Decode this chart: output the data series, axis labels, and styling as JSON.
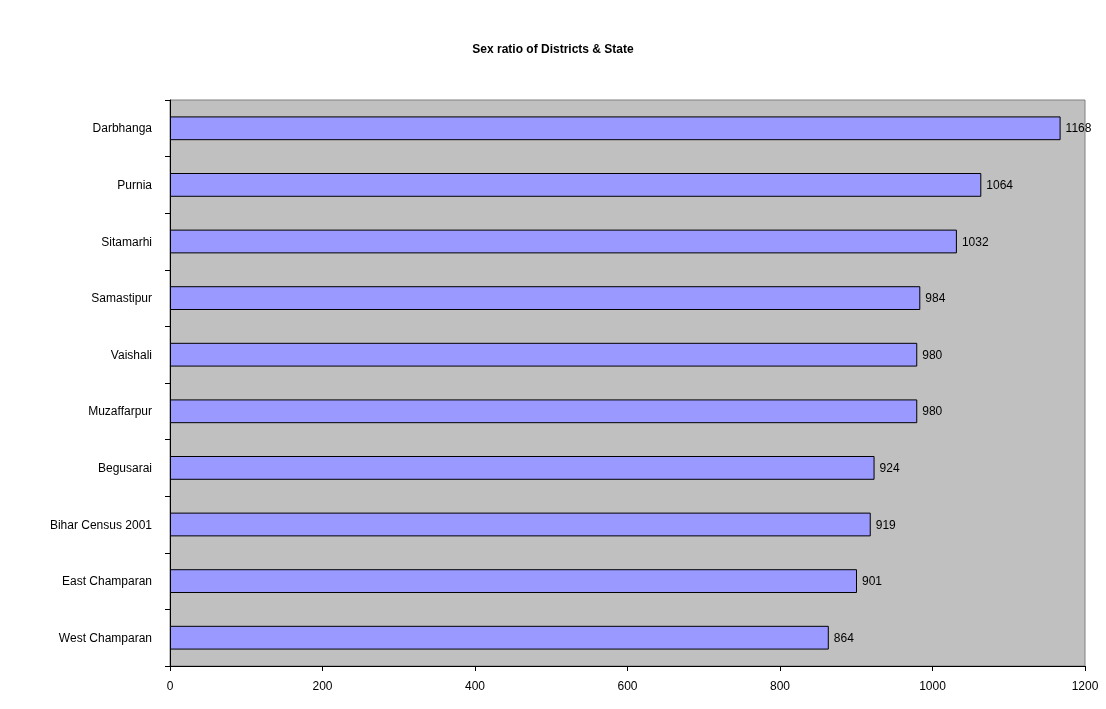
{
  "chart_data": {
    "type": "bar",
    "title": "Sex ratio of Districts & State",
    "orientation": "horizontal",
    "categories": [
      "Darbhanga",
      "Purnia",
      "Sitamarhi",
      "Samastipur",
      "Vaishali",
      "Muzaffarpur",
      "Begusarai",
      "Bihar Census 2001",
      "East Champaran",
      "West Champaran"
    ],
    "values": [
      1168,
      1064,
      1032,
      984,
      980,
      980,
      924,
      919,
      901,
      864
    ],
    "color": "#9999ff",
    "xlim": [
      0,
      1200
    ],
    "xticks": [
      0,
      200,
      400,
      600,
      800,
      1000,
      1200
    ],
    "grid": false,
    "data_labels": true
  }
}
